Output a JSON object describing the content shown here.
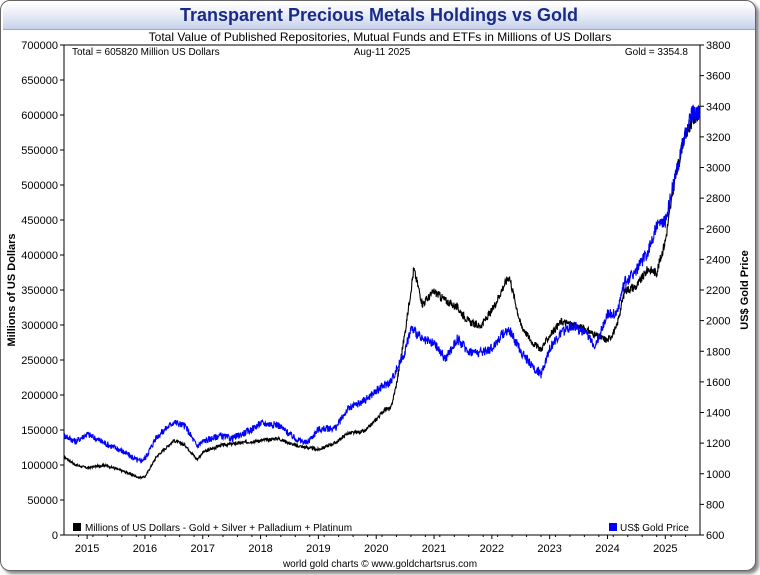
{
  "chart_data": {
    "type": "line",
    "title": "Transparent Precious Metals Holdings vs Gold",
    "subtitle": "Total Value of Published Repositories, Mutual Funds and ETFs in Millions of US Dollars",
    "info_left": "Total = 605820 Million US Dollars",
    "info_date": "Aug-11  2025",
    "info_right": "Gold = 3354.8",
    "ylabel_left": "Millions of US Dollars",
    "ylabel_right": "US$ Gold Price",
    "credit": "world gold charts © www.goldchartsrus.com",
    "x_range": [
      2014.6,
      2025.6
    ],
    "y_left_range": [
      0,
      700000
    ],
    "y_right_range": [
      600,
      3800
    ],
    "x_ticks": [
      {
        "value": 2015,
        "label": "2015"
      },
      {
        "value": 2016,
        "label": "2016"
      },
      {
        "value": 2017,
        "label": "2017"
      },
      {
        "value": 2018,
        "label": "2018"
      },
      {
        "value": 2019,
        "label": "2019"
      },
      {
        "value": 2020,
        "label": "2020"
      },
      {
        "value": 2021,
        "label": "2021"
      },
      {
        "value": 2022,
        "label": "2022"
      },
      {
        "value": 2023,
        "label": "2023"
      },
      {
        "value": 2024,
        "label": "2024"
      },
      {
        "value": 2025,
        "label": "2025"
      }
    ],
    "y_left_ticks": [
      {
        "value": 0,
        "label": "0"
      },
      {
        "value": 50000,
        "label": "50000"
      },
      {
        "value": 100000,
        "label": "100000"
      },
      {
        "value": 150000,
        "label": "150000"
      },
      {
        "value": 200000,
        "label": "200000"
      },
      {
        "value": 250000,
        "label": "250000"
      },
      {
        "value": 300000,
        "label": "300000"
      },
      {
        "value": 350000,
        "label": "350000"
      },
      {
        "value": 400000,
        "label": "400000"
      },
      {
        "value": 450000,
        "label": "450000"
      },
      {
        "value": 500000,
        "label": "500000"
      },
      {
        "value": 550000,
        "label": "550000"
      },
      {
        "value": 600000,
        "label": "600000"
      },
      {
        "value": 650000,
        "label": "650000"
      },
      {
        "value": 700000,
        "label": "700000"
      }
    ],
    "y_right_ticks": [
      {
        "value": 600,
        "label": "600"
      },
      {
        "value": 800,
        "label": "800"
      },
      {
        "value": 1000,
        "label": "1000"
      },
      {
        "value": 1200,
        "label": "1200"
      },
      {
        "value": 1400,
        "label": "1400"
      },
      {
        "value": 1600,
        "label": "1600"
      },
      {
        "value": 1800,
        "label": "1800"
      },
      {
        "value": 2000,
        "label": "2000"
      },
      {
        "value": 2200,
        "label": "2200"
      },
      {
        "value": 2400,
        "label": "2400"
      },
      {
        "value": 2600,
        "label": "2600"
      },
      {
        "value": 2800,
        "label": "2800"
      },
      {
        "value": 3000,
        "label": "3000"
      },
      {
        "value": 3200,
        "label": "3200"
      },
      {
        "value": 3400,
        "label": "3400"
      },
      {
        "value": 3600,
        "label": "3600"
      },
      {
        "value": 3800,
        "label": "3800"
      }
    ],
    "series": [
      {
        "name": "Millions of US Dollars - Gold + Silver + Palladium + Platinum",
        "axis": "left",
        "color": "#000000",
        "x": [
          2014.6,
          2014.8,
          2015.0,
          2015.3,
          2015.6,
          2015.9,
          2016.0,
          2016.2,
          2016.5,
          2016.7,
          2016.9,
          2017.0,
          2017.3,
          2017.5,
          2017.8,
          2018.0,
          2018.3,
          2018.6,
          2018.8,
          2019.0,
          2019.3,
          2019.5,
          2019.8,
          2020.0,
          2020.15,
          2020.25,
          2020.35,
          2020.5,
          2020.6,
          2020.65,
          2020.8,
          2021.0,
          2021.2,
          2021.4,
          2021.6,
          2021.8,
          2022.0,
          2022.2,
          2022.3,
          2022.5,
          2022.7,
          2022.85,
          2023.0,
          2023.2,
          2023.4,
          2023.6,
          2023.8,
          2024.0,
          2024.15,
          2024.3,
          2024.5,
          2024.7,
          2024.85,
          2025.0,
          2025.15,
          2025.3,
          2025.45,
          2025.6
        ],
        "values": [
          112000,
          100000,
          96000,
          100000,
          92000,
          82000,
          83000,
          112000,
          135000,
          128000,
          108000,
          118000,
          128000,
          130000,
          133000,
          135000,
          138000,
          128000,
          125000,
          122000,
          132000,
          145000,
          148000,
          165000,
          180000,
          180000,
          215000,
          290000,
          350000,
          380000,
          330000,
          348000,
          335000,
          325000,
          305000,
          298000,
          320000,
          355000,
          370000,
          300000,
          275000,
          265000,
          285000,
          305000,
          300000,
          295000,
          285000,
          278000,
          295000,
          350000,
          355000,
          380000,
          375000,
          420000,
          500000,
          560000,
          590000,
          605820
        ]
      },
      {
        "name": "US$ Gold Price",
        "axis": "right",
        "color": "#0000ff",
        "x": [
          2014.6,
          2014.8,
          2015.0,
          2015.3,
          2015.6,
          2015.9,
          2016.0,
          2016.2,
          2016.5,
          2016.7,
          2016.9,
          2017.0,
          2017.3,
          2017.5,
          2017.8,
          2018.0,
          2018.3,
          2018.6,
          2018.8,
          2019.0,
          2019.3,
          2019.5,
          2019.8,
          2020.0,
          2020.15,
          2020.25,
          2020.4,
          2020.5,
          2020.6,
          2020.7,
          2020.8,
          2021.0,
          2021.2,
          2021.4,
          2021.6,
          2021.8,
          2022.0,
          2022.2,
          2022.3,
          2022.5,
          2022.7,
          2022.85,
          2023.0,
          2023.2,
          2023.4,
          2023.6,
          2023.8,
          2024.0,
          2024.15,
          2024.3,
          2024.5,
          2024.7,
          2024.85,
          2025.0,
          2025.15,
          2025.3,
          2025.45,
          2025.6
        ],
        "values": [
          1250,
          1210,
          1260,
          1200,
          1150,
          1080,
          1100,
          1240,
          1340,
          1310,
          1180,
          1210,
          1250,
          1230,
          1280,
          1330,
          1320,
          1230,
          1200,
          1290,
          1300,
          1420,
          1480,
          1540,
          1580,
          1600,
          1720,
          1800,
          1950,
          1920,
          1870,
          1850,
          1750,
          1880,
          1800,
          1790,
          1820,
          1920,
          1940,
          1800,
          1700,
          1650,
          1820,
          1920,
          1970,
          1920,
          1840,
          2050,
          2040,
          2250,
          2330,
          2450,
          2620,
          2650,
          2900,
          3150,
          3350,
          3354.8
        ]
      }
    ],
    "legend": [
      {
        "label": "Millions of US Dollars - Gold + Silver + Palladium + Platinum",
        "color": "#000000",
        "position": "bottom-left"
      },
      {
        "label": "US$ Gold Price",
        "color": "#0000ff",
        "position": "bottom-right"
      }
    ]
  }
}
